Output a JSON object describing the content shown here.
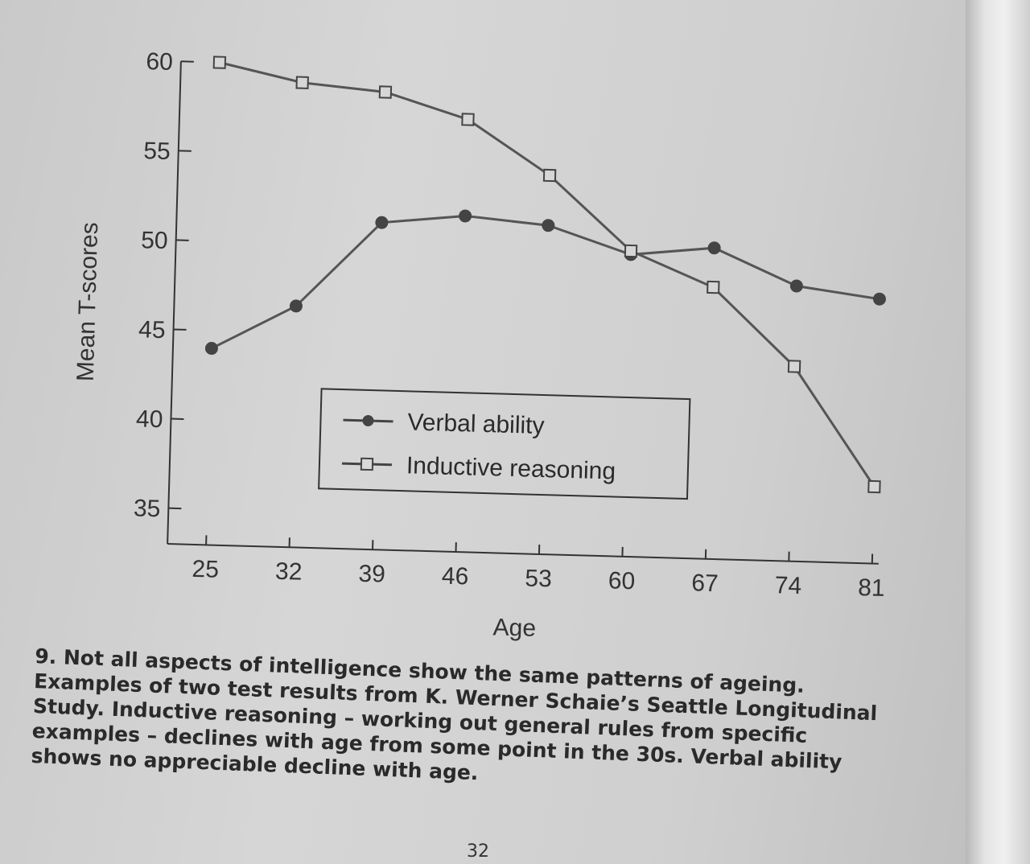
{
  "chart_data": {
    "type": "line",
    "xlabel": "Age",
    "ylabel": "Mean T-scores",
    "x": [
      25,
      32,
      39,
      46,
      53,
      60,
      67,
      74,
      81
    ],
    "x_tick_labels": [
      "25",
      "32",
      "39",
      "46",
      "53",
      "60",
      "67",
      "74",
      "81"
    ],
    "y_tick_labels": [
      "35",
      "40",
      "45",
      "50",
      "55",
      "60"
    ],
    "ylim": [
      33,
      60
    ],
    "grid": false,
    "legend_position": "center",
    "series": [
      {
        "name": "Verbal ability",
        "marker": "filled-circle",
        "values": [
          44.0,
          46.5,
          51.3,
          51.8,
          51.4,
          49.9,
          50.4,
          48.4,
          47.8
        ]
      },
      {
        "name": "Inductive reasoning",
        "marker": "open-square",
        "values": [
          60.0,
          59.0,
          58.6,
          57.2,
          54.2,
          50.1,
          48.2,
          43.9,
          37.3
        ]
      }
    ],
    "colors": {
      "line": "#555555",
      "marker": "#444444",
      "axis": "#333333"
    }
  },
  "caption": {
    "lines": [
      "9. Not all aspects of intelligence show the same patterns of ageing.",
      "Examples of two test results from K. Werner Schaie’s Seattle Longitudinal",
      "Study. Inductive reasoning – working out general rules from specific",
      "examples – declines with age from some point in the 30s. Verbal ability",
      "shows no appreciable decline with age."
    ]
  },
  "page_number": "32"
}
